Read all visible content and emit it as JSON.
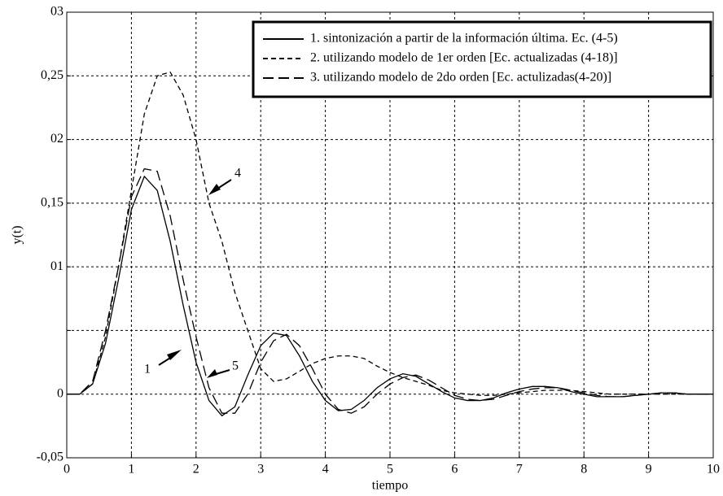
{
  "chart_data": {
    "type": "line",
    "xlabel": "tiempo",
    "ylabel": "y(t)",
    "x": [
      0,
      0.2,
      0.4,
      0.6,
      0.8,
      1.0,
      1.2,
      1.4,
      1.6,
      1.8,
      2.0,
      2.2,
      2.4,
      2.6,
      2.8,
      3.0,
      3.2,
      3.4,
      3.6,
      3.8,
      4.0,
      4.2,
      4.4,
      4.6,
      4.8,
      5.0,
      5.2,
      5.4,
      5.6,
      5.8,
      6.0,
      6.2,
      6.4,
      6.6,
      6.8,
      7.0,
      7.2,
      7.4,
      7.6,
      7.8,
      8.0,
      8.2,
      8.4,
      8.6,
      8.8,
      9.0,
      9.2,
      9.4,
      9.6,
      9.8,
      10
    ],
    "series": [
      {
        "name": "1.  sintonización a partir de la información última. Ec. (4-5)",
        "color": "#000000",
        "dash": "solid",
        "values": [
          0,
          0,
          0.008,
          0.04,
          0.09,
          0.145,
          0.171,
          0.16,
          0.12,
          0.07,
          0.025,
          -0.005,
          -0.017,
          -0.01,
          0.015,
          0.038,
          0.048,
          0.046,
          0.03,
          0.01,
          -0.005,
          -0.013,
          -0.012,
          -0.005,
          0.005,
          0.012,
          0.016,
          0.014,
          0.008,
          0.002,
          -0.003,
          -0.005,
          -0.005,
          -0.003,
          0.001,
          0.004,
          0.006,
          0.006,
          0.005,
          0.002,
          0,
          -0.002,
          -0.002,
          -0.002,
          -0.001,
          0,
          0.001,
          0.001,
          0,
          0,
          0
        ]
      },
      {
        "name": "2.  utilizando modelo de 1er orden [Ec. actualizadas (4-18)]",
        "color": "#000000",
        "dash": "short",
        "values": [
          0,
          0,
          0.008,
          0.045,
          0.1,
          0.16,
          0.22,
          0.25,
          0.253,
          0.235,
          0.2,
          0.15,
          0.12,
          0.08,
          0.05,
          0.02,
          0.01,
          0.012,
          0.018,
          0.024,
          0.028,
          0.03,
          0.03,
          0.028,
          0.022,
          0.017,
          0.013,
          0.01,
          0.007,
          0.003,
          0.001,
          0,
          -0.001,
          -0.001,
          0,
          0.001,
          0.002,
          0.003,
          0.003,
          0.003,
          0.002,
          0.001,
          0,
          0,
          0,
          0,
          0,
          0,
          0,
          0,
          0
        ]
      },
      {
        "name": "3.  utilizando modelo de 2do orden [Ec. actulizadas(4-20)]",
        "color": "#000000",
        "dash": "long",
        "values": [
          0,
          0,
          0.01,
          0.05,
          0.1,
          0.155,
          0.177,
          0.175,
          0.14,
          0.09,
          0.045,
          0.005,
          -0.015,
          -0.015,
          0,
          0.025,
          0.042,
          0.047,
          0.038,
          0.02,
          0,
          -0.012,
          -0.015,
          -0.01,
          0,
          0.008,
          0.013,
          0.015,
          0.011,
          0.005,
          -0.001,
          -0.004,
          -0.005,
          -0.004,
          -0.001,
          0.002,
          0.004,
          0.005,
          0.005,
          0.003,
          0.001,
          -0.001,
          -0.002,
          -0.002,
          -0.001,
          0,
          0.001,
          0.001,
          0,
          0,
          0
        ]
      }
    ],
    "xlim": [
      0,
      10
    ],
    "xticks": [
      0,
      1,
      2,
      3,
      4,
      5,
      6,
      7,
      8,
      9,
      10
    ],
    "ylim": [
      -0.05,
      0.3
    ],
    "yticks": [
      {
        "value": -0.05,
        "label": "-0,05"
      },
      0,
      {
        "value": 0.05,
        "label": null
      },
      {
        "value": 0.1,
        "label": "01"
      },
      {
        "value": 0.15,
        "label": "0,15"
      },
      {
        "value": 0.2,
        "label": "02"
      },
      {
        "value": 0.25,
        "label": "0,25"
      },
      {
        "value": 0.3,
        "label": "03"
      }
    ],
    "grid": true,
    "legend": "upper right",
    "annotations": [
      "1",
      "4",
      "5"
    ]
  }
}
